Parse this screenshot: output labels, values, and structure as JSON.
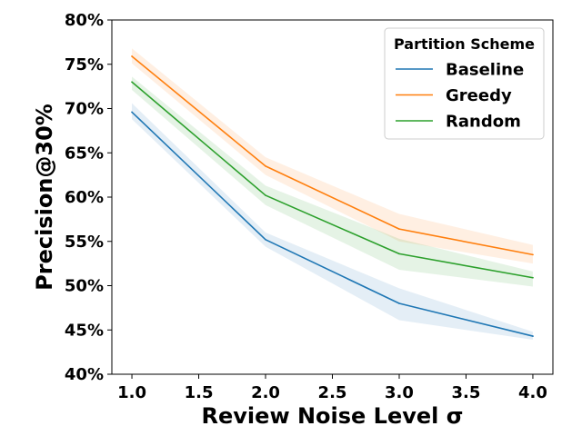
{
  "chart_data": {
    "type": "line",
    "xlabel": "Review Noise Level σ",
    "ylabel": "Precision@30%",
    "x": [
      1.0,
      2.0,
      3.0,
      4.0
    ],
    "xlim": [
      0.85,
      4.15
    ],
    "ylim": [
      40,
      80
    ],
    "xticks": [
      1.0,
      1.5,
      2.0,
      2.5,
      3.0,
      3.5,
      4.0
    ],
    "xtick_labels": [
      "1.0",
      "1.5",
      "2.0",
      "2.5",
      "3.0",
      "3.5",
      "4.0"
    ],
    "yticks": [
      40,
      45,
      50,
      55,
      60,
      65,
      70,
      75,
      80
    ],
    "ytick_labels": [
      "40%",
      "45%",
      "50%",
      "55%",
      "60%",
      "65%",
      "70%",
      "75%",
      "80%"
    ],
    "grid": false,
    "legend": {
      "title": "Partition Scheme",
      "placement": "top-right"
    },
    "series": [
      {
        "name": "Baseline",
        "color": "#1f77b4",
        "values": [
          69.6,
          55.2,
          48.0,
          44.3
        ],
        "lower": [
          68.8,
          54.4,
          46.1,
          43.9
        ],
        "upper": [
          70.6,
          56.0,
          49.7,
          44.8
        ]
      },
      {
        "name": "Greedy",
        "color": "#ff7f0e",
        "values": [
          75.9,
          63.5,
          56.4,
          53.5
        ],
        "lower": [
          75.1,
          62.5,
          55.0,
          52.5
        ],
        "upper": [
          76.8,
          64.5,
          58.1,
          54.6
        ]
      },
      {
        "name": "Random",
        "color": "#2ca02c",
        "values": [
          73.0,
          60.2,
          53.6,
          50.9
        ],
        "lower": [
          72.1,
          59.1,
          51.8,
          49.9
        ],
        "upper": [
          73.6,
          61.3,
          55.3,
          51.6
        ]
      }
    ]
  }
}
